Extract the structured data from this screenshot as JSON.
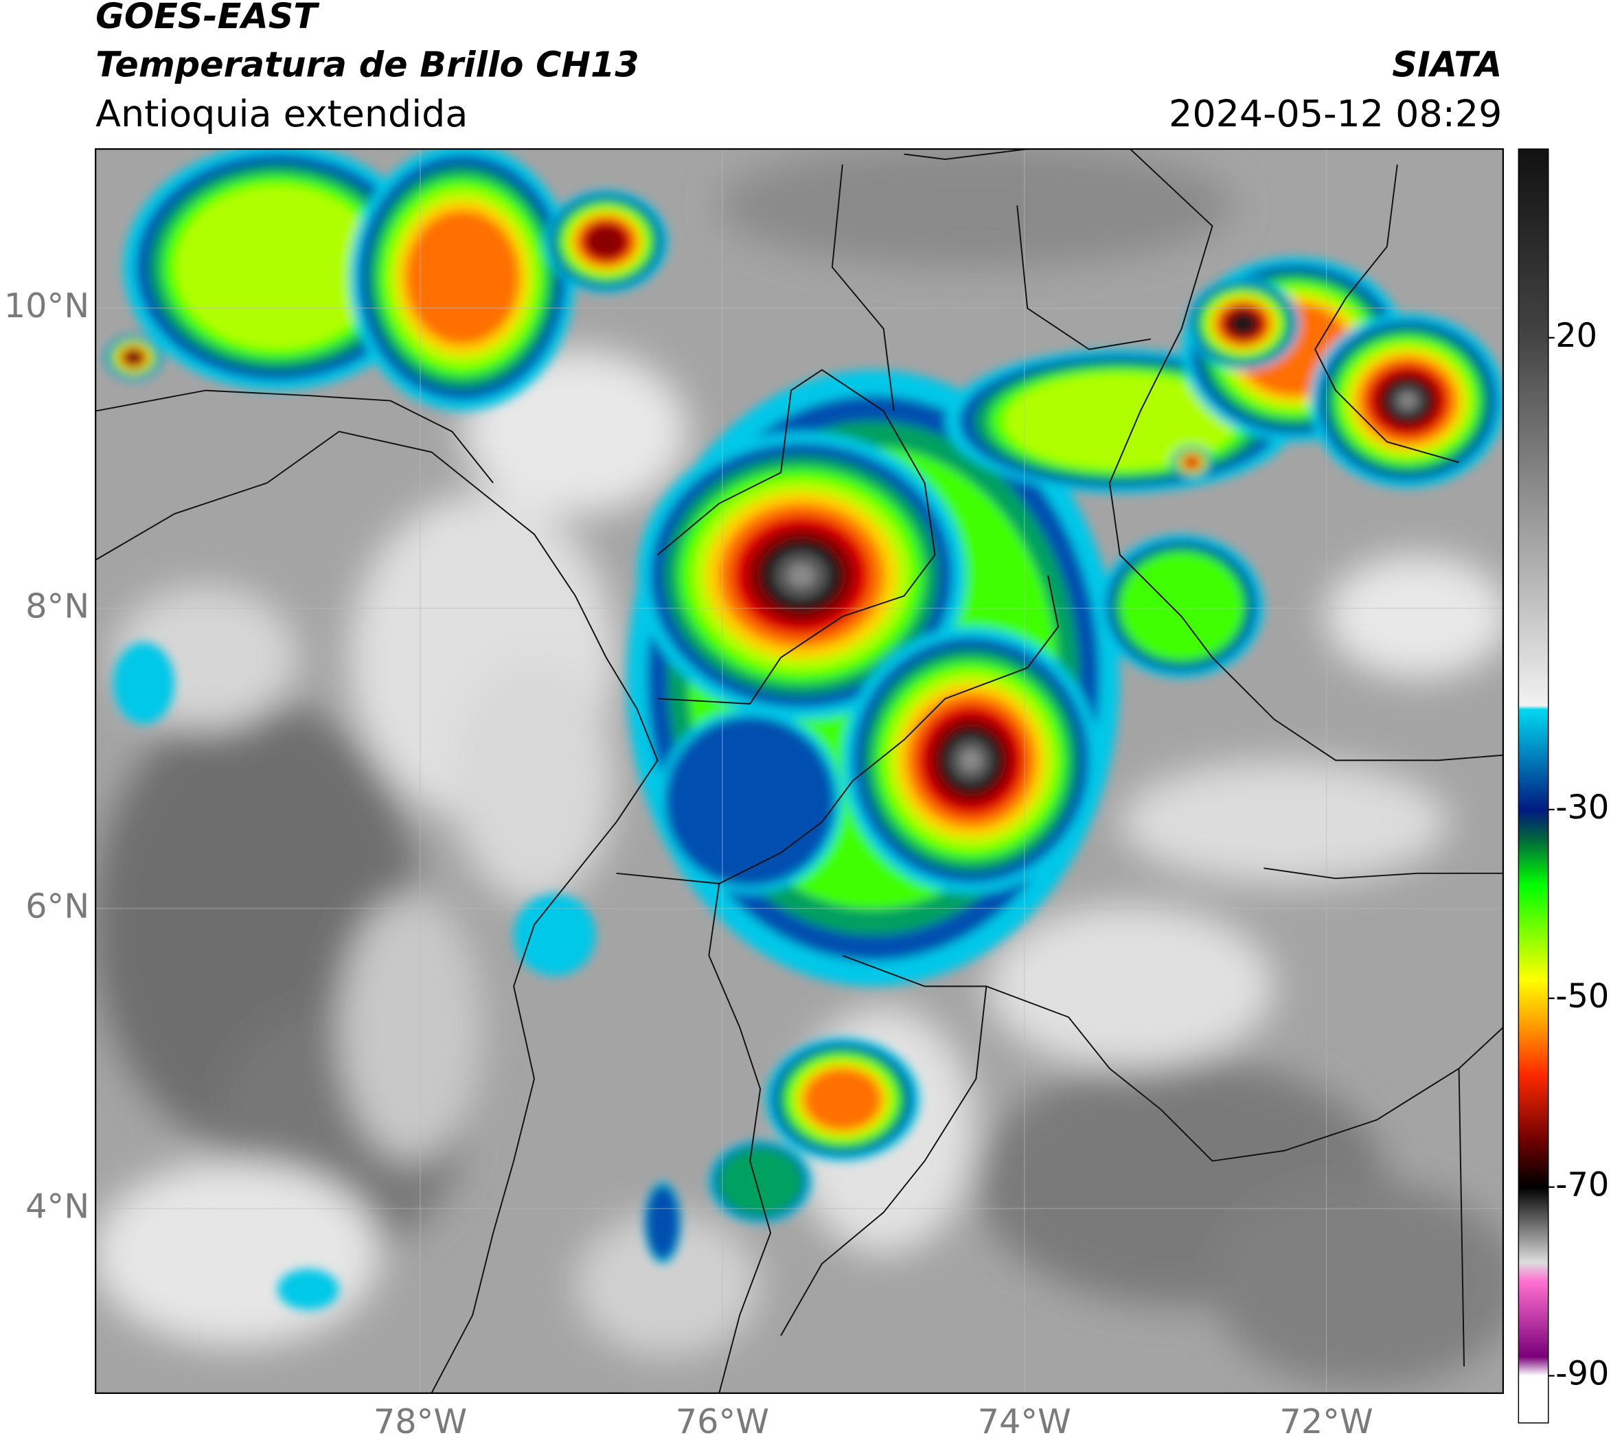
{
  "header": {
    "title": "GOES-EAST",
    "subtitle": "Temperatura de Brillo CH13",
    "region": "Antioquia extendida",
    "source": "SIATA",
    "datetime": "2024-05-12 08:29"
  },
  "map": {
    "xlim": [
      -80.15,
      -70.83
    ],
    "ylim": [
      2.77,
      11.06
    ],
    "xticks": [
      {
        "value": -78,
        "label": "78°W"
      },
      {
        "value": -76,
        "label": "76°W"
      },
      {
        "value": -74,
        "label": "74°W"
      },
      {
        "value": -72,
        "label": "72°W"
      }
    ],
    "yticks": [
      {
        "value": 4,
        "label": "4°N"
      },
      {
        "value": 6,
        "label": "6°N"
      },
      {
        "value": 8,
        "label": "8°N"
      },
      {
        "value": 10,
        "label": "10°N"
      }
    ]
  },
  "colorbar": {
    "lim": [
      -95,
      40
    ],
    "ticks": [
      20,
      -30,
      -50,
      -70,
      -90
    ]
  }
}
